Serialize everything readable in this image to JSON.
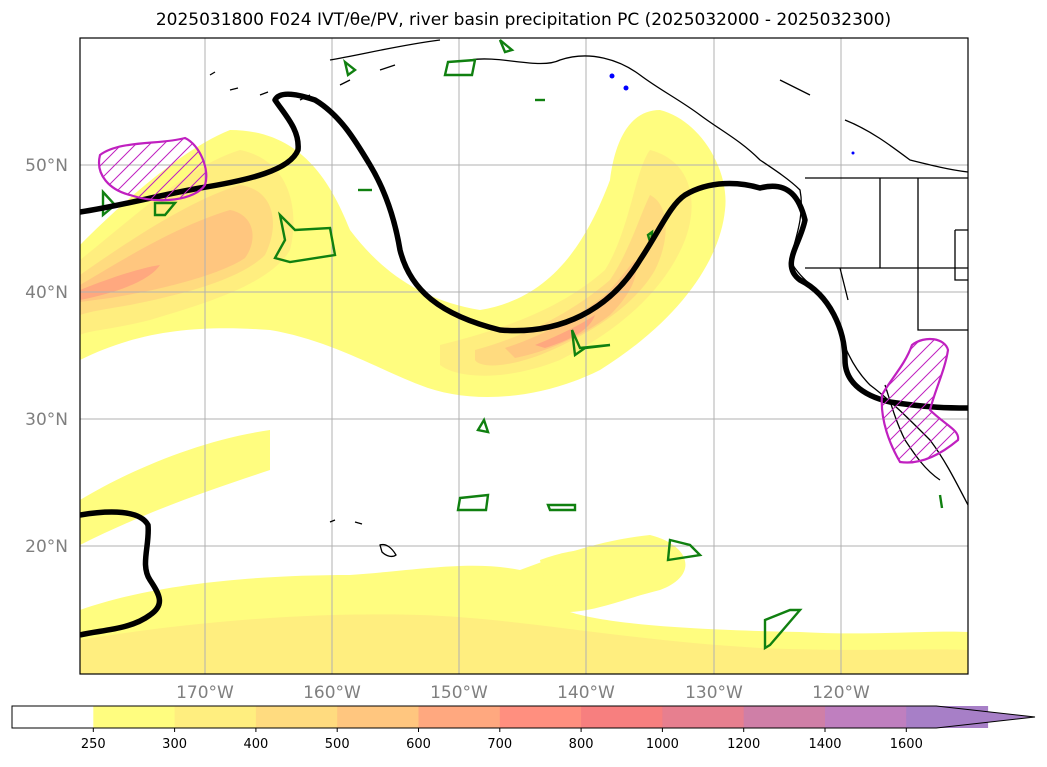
{
  "title": {
    "text": "2025031800 F024 IVT/θe/PV, river basin precipitation PC (2025032000 - 2025032300)"
  },
  "map": {
    "projection": "PlateCarree",
    "lon_range": [
      -180,
      -110
    ],
    "lat_range": [
      10,
      60
    ],
    "gridlines": true,
    "lat_labels": [
      "20°N",
      "30°N",
      "40°N",
      "50°N"
    ],
    "lon_labels": [
      "170°W",
      "160°W",
      "150°W",
      "140°W",
      "130°W",
      "120°W"
    ],
    "layers": {
      "ivt_filled": "IVT shading",
      "theta_e_contour": "thick black contour",
      "pv_contours": "green contours",
      "basin_precip": "magenta hatched outlines",
      "coastlines": "black coastlines and state borders"
    }
  },
  "colorbar": {
    "ticks": [
      "250",
      "300",
      "400",
      "500",
      "600",
      "700",
      "800",
      "1000",
      "1200",
      "1400",
      "1600"
    ],
    "colors": [
      "#ffffff",
      "#fffd7f",
      "#ffee7f",
      "#ffdb7f",
      "#ffc67f",
      "#ffa87f",
      "#ff8f7f",
      "#f77f7f",
      "#e77f8f",
      "#cf7fa7",
      "#bf7fbf",
      "#a77fc7"
    ],
    "extend": "max"
  },
  "chart_data": {
    "type": "heatmap",
    "title": "2025031800 F024 IVT/θe/PV, river basin precipitation PC (2025032000 - 2025032300)",
    "x_ticks": [
      "170°W",
      "160°W",
      "150°W",
      "140°W",
      "130°W",
      "120°W"
    ],
    "y_ticks": [
      "20°N",
      "30°N",
      "40°N",
      "50°N"
    ],
    "colorbar_levels": [
      250,
      300,
      400,
      500,
      600,
      700,
      800,
      1000,
      1200,
      1400,
      1600
    ],
    "grid": true
  }
}
